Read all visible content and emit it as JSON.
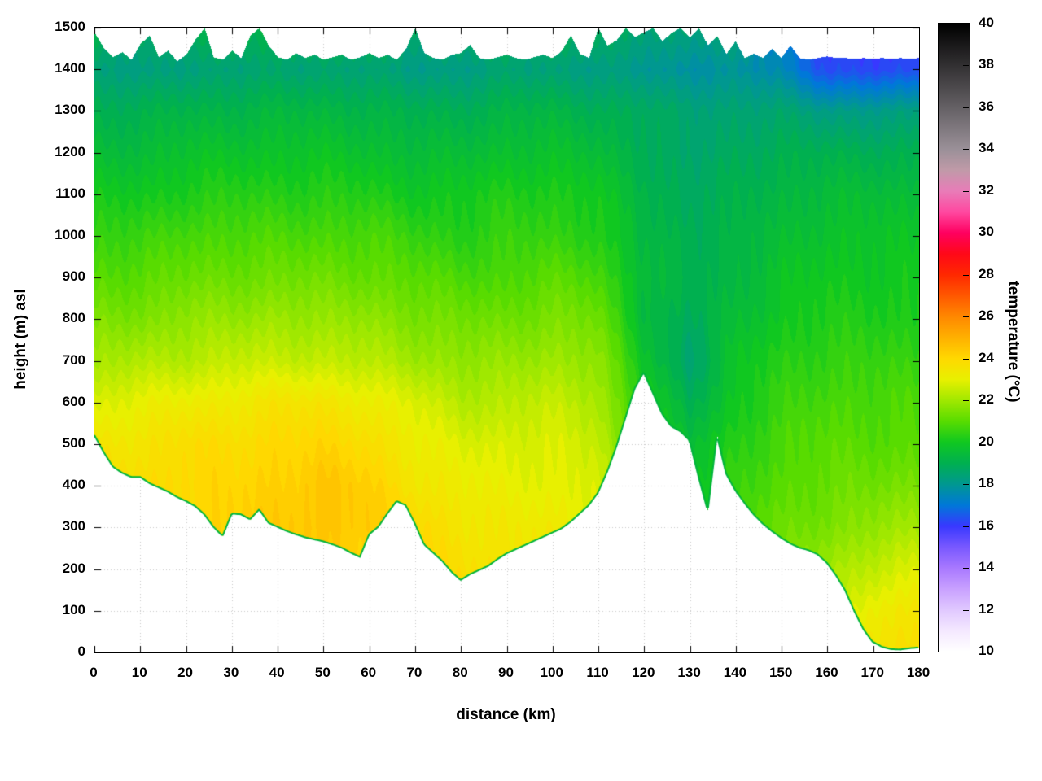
{
  "axes": {
    "x": {
      "label": "distance (km)",
      "min": 0,
      "max": 180,
      "ticks": [
        0,
        10,
        20,
        30,
        40,
        50,
        60,
        70,
        80,
        90,
        100,
        110,
        120,
        130,
        140,
        150,
        160,
        170,
        180
      ]
    },
    "y": {
      "label": "height (m) asl",
      "min": 0,
      "max": 1500,
      "ticks": [
        0,
        100,
        200,
        300,
        400,
        500,
        600,
        700,
        800,
        900,
        1000,
        1100,
        1200,
        1300,
        1400,
        1500
      ]
    },
    "colorbar": {
      "label": "temperature (°C)",
      "min": 10,
      "max": 40,
      "ticks": [
        10,
        12,
        14,
        16,
        18,
        20,
        22,
        24,
        26,
        28,
        30,
        32,
        34,
        36,
        38,
        40
      ]
    }
  },
  "chart_data": {
    "type": "heatmap",
    "title": "",
    "xlabel": "distance (km)",
    "ylabel": "height (m) asl",
    "cblabel": "temperature (°C)",
    "xlim": [
      0,
      180
    ],
    "ylim": [
      0,
      1500
    ],
    "cblim": [
      10,
      40
    ],
    "grid": "dotted",
    "grid_color": "#c8c8c8",
    "background": "#ffffff",
    "terrain_line_color": "#00b43c",
    "x_km_step": 2,
    "terrain_elevation_m": [
      520,
      480,
      445,
      430,
      420,
      420,
      405,
      395,
      385,
      372,
      362,
      350,
      330,
      300,
      278,
      332,
      330,
      318,
      342,
      310,
      300,
      290,
      282,
      275,
      270,
      265,
      258,
      250,
      238,
      228,
      282,
      300,
      332,
      362,
      352,
      308,
      258,
      238,
      218,
      192,
      172,
      186,
      196,
      206,
      222,
      236,
      246,
      256,
      266,
      276,
      286,
      296,
      312,
      332,
      352,
      382,
      432,
      492,
      562,
      632,
      672,
      622,
      572,
      542,
      530,
      508,
      420,
      338,
      520,
      428,
      388,
      358,
      330,
      308,
      290,
      274,
      260,
      250,
      244,
      234,
      214,
      184,
      148,
      98,
      54,
      24,
      12,
      6,
      5,
      8,
      10
    ],
    "top_boundary_m": [
      1488,
      1452,
      1430,
      1442,
      1424,
      1462,
      1482,
      1430,
      1446,
      1420,
      1436,
      1472,
      1500,
      1430,
      1424,
      1446,
      1428,
      1482,
      1500,
      1458,
      1430,
      1424,
      1440,
      1428,
      1436,
      1424,
      1430,
      1436,
      1424,
      1430,
      1440,
      1428,
      1436,
      1424,
      1450,
      1500,
      1440,
      1428,
      1424,
      1436,
      1440,
      1460,
      1428,
      1424,
      1430,
      1436,
      1428,
      1424,
      1430,
      1436,
      1428,
      1444,
      1482,
      1438,
      1428,
      1500,
      1458,
      1470,
      1500,
      1478,
      1490,
      1500,
      1468,
      1488,
      1500,
      1478,
      1500,
      1458,
      1480,
      1438,
      1468,
      1428,
      1438,
      1428,
      1450,
      1428,
      1458,
      1428,
      1424,
      1428,
      1432,
      1428,
      1428,
      1426,
      1428,
      1426,
      1428,
      1426,
      1428,
      1426,
      1428
    ],
    "temperature_grid": {
      "x_values": [
        0,
        10,
        20,
        30,
        40,
        50,
        60,
        70,
        80,
        90,
        100,
        110,
        120,
        130,
        140,
        150,
        160,
        170,
        180
      ],
      "y_values": [
        0,
        100,
        200,
        300,
        400,
        500,
        600,
        700,
        800,
        900,
        1000,
        1100,
        1200,
        1300,
        1400,
        1500
      ],
      "t_by_row_bottom_to_top": [
        [
          24.0,
          24.0,
          24.0,
          24.0,
          24.0,
          24.2,
          24.0,
          24.0,
          24.0,
          24.0,
          24.0,
          23.5,
          22.0,
          21.0,
          21.5,
          22.0,
          22.5,
          23.5,
          23.8
        ],
        [
          24.0,
          24.0,
          24.0,
          24.0,
          24.0,
          24.2,
          24.0,
          24.0,
          24.0,
          23.8,
          23.8,
          23.3,
          21.8,
          20.8,
          21.2,
          21.8,
          22.2,
          23.2,
          23.5
        ],
        [
          24.0,
          24.0,
          24.0,
          24.1,
          24.2,
          24.3,
          24.2,
          24.0,
          23.8,
          23.5,
          23.5,
          23.0,
          21.5,
          20.5,
          21.0,
          21.5,
          22.0,
          22.5,
          22.8
        ],
        [
          24.0,
          24.0,
          24.0,
          24.2,
          24.3,
          24.5,
          24.3,
          24.0,
          23.5,
          23.3,
          23.3,
          23.0,
          21.0,
          20.2,
          20.8,
          21.2,
          21.5,
          21.8,
          22.0
        ],
        [
          23.8,
          23.8,
          24.0,
          24.0,
          24.2,
          24.5,
          24.2,
          23.5,
          23.2,
          23.0,
          23.0,
          22.8,
          20.8,
          19.8,
          20.5,
          21.0,
          21.2,
          21.3,
          21.5
        ],
        [
          23.5,
          23.5,
          23.8,
          23.8,
          24.0,
          24.0,
          23.8,
          23.2,
          22.8,
          22.8,
          22.8,
          22.5,
          20.5,
          19.5,
          20.3,
          20.8,
          21.0,
          21.0,
          21.0
        ],
        [
          22.8,
          23.0,
          23.2,
          23.3,
          23.5,
          23.5,
          23.2,
          22.8,
          22.3,
          22.3,
          22.5,
          22.2,
          20.2,
          19.0,
          20.0,
          20.5,
          20.8,
          20.8,
          20.8
        ],
        [
          22.0,
          22.2,
          22.3,
          22.5,
          22.5,
          22.5,
          22.3,
          22.0,
          21.8,
          21.8,
          22.0,
          21.8,
          19.8,
          18.5,
          19.8,
          20.3,
          20.5,
          20.5,
          20.5
        ],
        [
          21.5,
          21.5,
          21.8,
          21.8,
          22.0,
          21.8,
          21.8,
          21.5,
          21.3,
          21.3,
          21.5,
          21.3,
          19.5,
          18.8,
          19.5,
          20.0,
          20.2,
          20.2,
          20.2
        ],
        [
          21.0,
          21.0,
          21.2,
          21.3,
          21.3,
          21.3,
          21.2,
          21.0,
          20.8,
          20.8,
          21.0,
          20.8,
          19.5,
          19.0,
          19.3,
          19.8,
          20.0,
          20.0,
          20.0
        ],
        [
          20.5,
          20.5,
          20.8,
          20.8,
          20.8,
          20.8,
          20.8,
          20.5,
          20.3,
          20.5,
          20.5,
          20.3,
          19.3,
          19.0,
          19.2,
          19.5,
          19.8,
          19.8,
          19.8
        ],
        [
          20.0,
          20.0,
          20.2,
          20.3,
          20.3,
          20.3,
          20.2,
          20.0,
          20.0,
          20.2,
          20.2,
          20.0,
          19.2,
          18.8,
          19.0,
          19.3,
          19.5,
          19.5,
          19.5
        ],
        [
          19.5,
          19.5,
          19.7,
          19.8,
          19.8,
          19.8,
          19.7,
          19.5,
          19.5,
          19.7,
          19.7,
          19.5,
          19.0,
          18.5,
          18.8,
          19.0,
          19.0,
          19.0,
          19.0
        ],
        [
          19.0,
          19.0,
          19.2,
          19.2,
          19.3,
          19.3,
          19.2,
          19.0,
          19.0,
          19.2,
          19.2,
          19.0,
          18.8,
          18.5,
          18.5,
          18.5,
          18.2,
          18.2,
          18.2
        ],
        [
          18.3,
          18.2,
          18.4,
          18.4,
          18.5,
          18.5,
          18.4,
          18.2,
          18.2,
          18.4,
          18.4,
          18.2,
          18.0,
          17.8,
          17.8,
          17.5,
          16.3,
          16.2,
          16.3
        ],
        [
          19.0,
          18.8,
          19.0,
          19.0,
          19.2,
          19.2,
          19.0,
          18.8,
          18.8,
          19.0,
          19.0,
          18.8,
          18.6,
          18.4,
          18.4,
          17.0,
          16.0,
          15.8,
          16.0
        ]
      ]
    },
    "palette_stops": [
      [
        10,
        "#ffffff"
      ],
      [
        11,
        "#f4e8ff"
      ],
      [
        12,
        "#e0c8ff"
      ],
      [
        13,
        "#c8a0ff"
      ],
      [
        14,
        "#a878ff"
      ],
      [
        15,
        "#7858ff"
      ],
      [
        16,
        "#3838ff"
      ],
      [
        17,
        "#0078d8"
      ],
      [
        18,
        "#009890"
      ],
      [
        19,
        "#00b050"
      ],
      [
        20,
        "#10c820"
      ],
      [
        21,
        "#58dc00"
      ],
      [
        22,
        "#a0e800"
      ],
      [
        23,
        "#e8f000"
      ],
      [
        24,
        "#ffd800"
      ],
      [
        25,
        "#ffb000"
      ],
      [
        26,
        "#ff8800"
      ],
      [
        27,
        "#ff5800"
      ],
      [
        28,
        "#ff2800"
      ],
      [
        29,
        "#ff0818"
      ],
      [
        30,
        "#ff0060"
      ],
      [
        31,
        "#ff48a0"
      ],
      [
        32,
        "#e87cb8"
      ],
      [
        33,
        "#c09aa8"
      ],
      [
        34,
        "#9a9098"
      ],
      [
        36,
        "#646064"
      ],
      [
        38,
        "#323032"
      ],
      [
        40,
        "#000000"
      ]
    ],
    "contour_quantize_c": 0.25
  }
}
